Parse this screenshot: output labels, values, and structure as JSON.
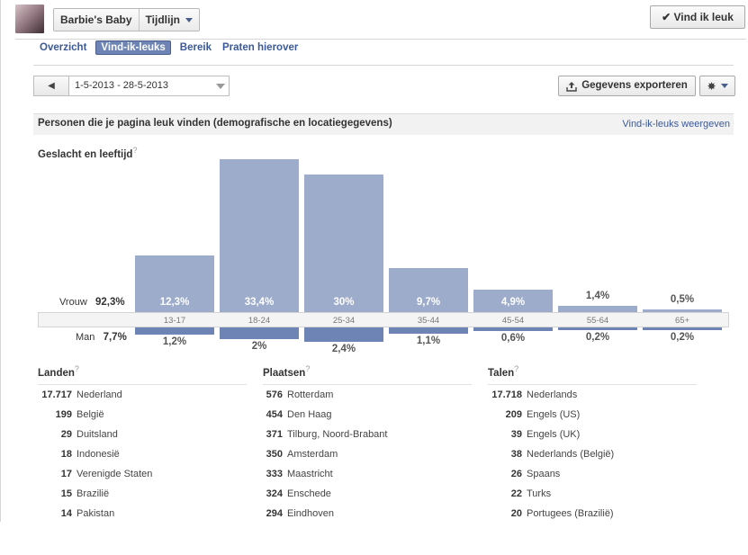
{
  "header": {
    "page_name": "Barbie's Baby",
    "timeline_label": "Tijdlijn",
    "like_button": "Vind ik leuk"
  },
  "tabs": [
    {
      "label": "Overzicht",
      "active": false
    },
    {
      "label": "Vind-ik-leuks",
      "active": true
    },
    {
      "label": "Bereik",
      "active": false
    },
    {
      "label": "Praten hierover",
      "active": false
    }
  ],
  "toolbar": {
    "date_range": "1-5-2013 - 28-5-2013",
    "export_label": "Gegevens exporteren"
  },
  "section": {
    "title": "Personen die je pagina leuk vinden (demografische en locatiegegevens)",
    "link": "Vind-ik-leuks weergeven",
    "subtitle": "Geslacht en leeftijd",
    "help": "?"
  },
  "gender": {
    "female_label": "Vrouw",
    "female_total": "92,3%",
    "male_label": "Man",
    "male_total": "7,7%"
  },
  "chart_data": {
    "type": "bar",
    "categories": [
      "13-17",
      "18-24",
      "25-34",
      "35-44",
      "45-54",
      "55-64",
      "65+"
    ],
    "series": [
      {
        "name": "Vrouw",
        "values": [
          12.3,
          33.4,
          30,
          9.7,
          4.9,
          1.4,
          0.5
        ],
        "labels": [
          "12,3%",
          "33,4%",
          "30%",
          "9,7%",
          "4,9%",
          "1,4%",
          "0,5%"
        ]
      },
      {
        "name": "Man",
        "values": [
          1.2,
          2,
          2.4,
          1.1,
          0.6,
          0.2,
          0.2
        ],
        "labels": [
          "1,2%",
          "2%",
          "2,4%",
          "1,1%",
          "0,6%",
          "0,2%",
          "0,2%"
        ]
      }
    ],
    "colors": {
      "female": "#9eaccc",
      "male": "#6d84b4"
    }
  },
  "lists": {
    "countries": {
      "title": "Landen",
      "rows": [
        {
          "n": "17.717",
          "label": "Nederland"
        },
        {
          "n": "199",
          "label": "België"
        },
        {
          "n": "29",
          "label": "Duitsland"
        },
        {
          "n": "18",
          "label": "Indonesië"
        },
        {
          "n": "17",
          "label": "Verenigde Staten"
        },
        {
          "n": "15",
          "label": "Brazilië"
        },
        {
          "n": "14",
          "label": "Pakistan"
        }
      ]
    },
    "cities": {
      "title": "Plaatsen",
      "rows": [
        {
          "n": "576",
          "label": "Rotterdam"
        },
        {
          "n": "454",
          "label": "Den Haag"
        },
        {
          "n": "371",
          "label": "Tilburg, Noord-Brabant"
        },
        {
          "n": "350",
          "label": "Amsterdam"
        },
        {
          "n": "333",
          "label": "Maastricht"
        },
        {
          "n": "324",
          "label": "Enschede"
        },
        {
          "n": "294",
          "label": "Eindhoven"
        }
      ]
    },
    "languages": {
      "title": "Talen",
      "rows": [
        {
          "n": "17.718",
          "label": "Nederlands"
        },
        {
          "n": "209",
          "label": "Engels (US)"
        },
        {
          "n": "39",
          "label": "Engels (UK)"
        },
        {
          "n": "38",
          "label": "Nederlands (België)"
        },
        {
          "n": "26",
          "label": "Spaans"
        },
        {
          "n": "22",
          "label": "Turks"
        },
        {
          "n": "20",
          "label": "Portugees (Brazilië)"
        }
      ]
    }
  }
}
